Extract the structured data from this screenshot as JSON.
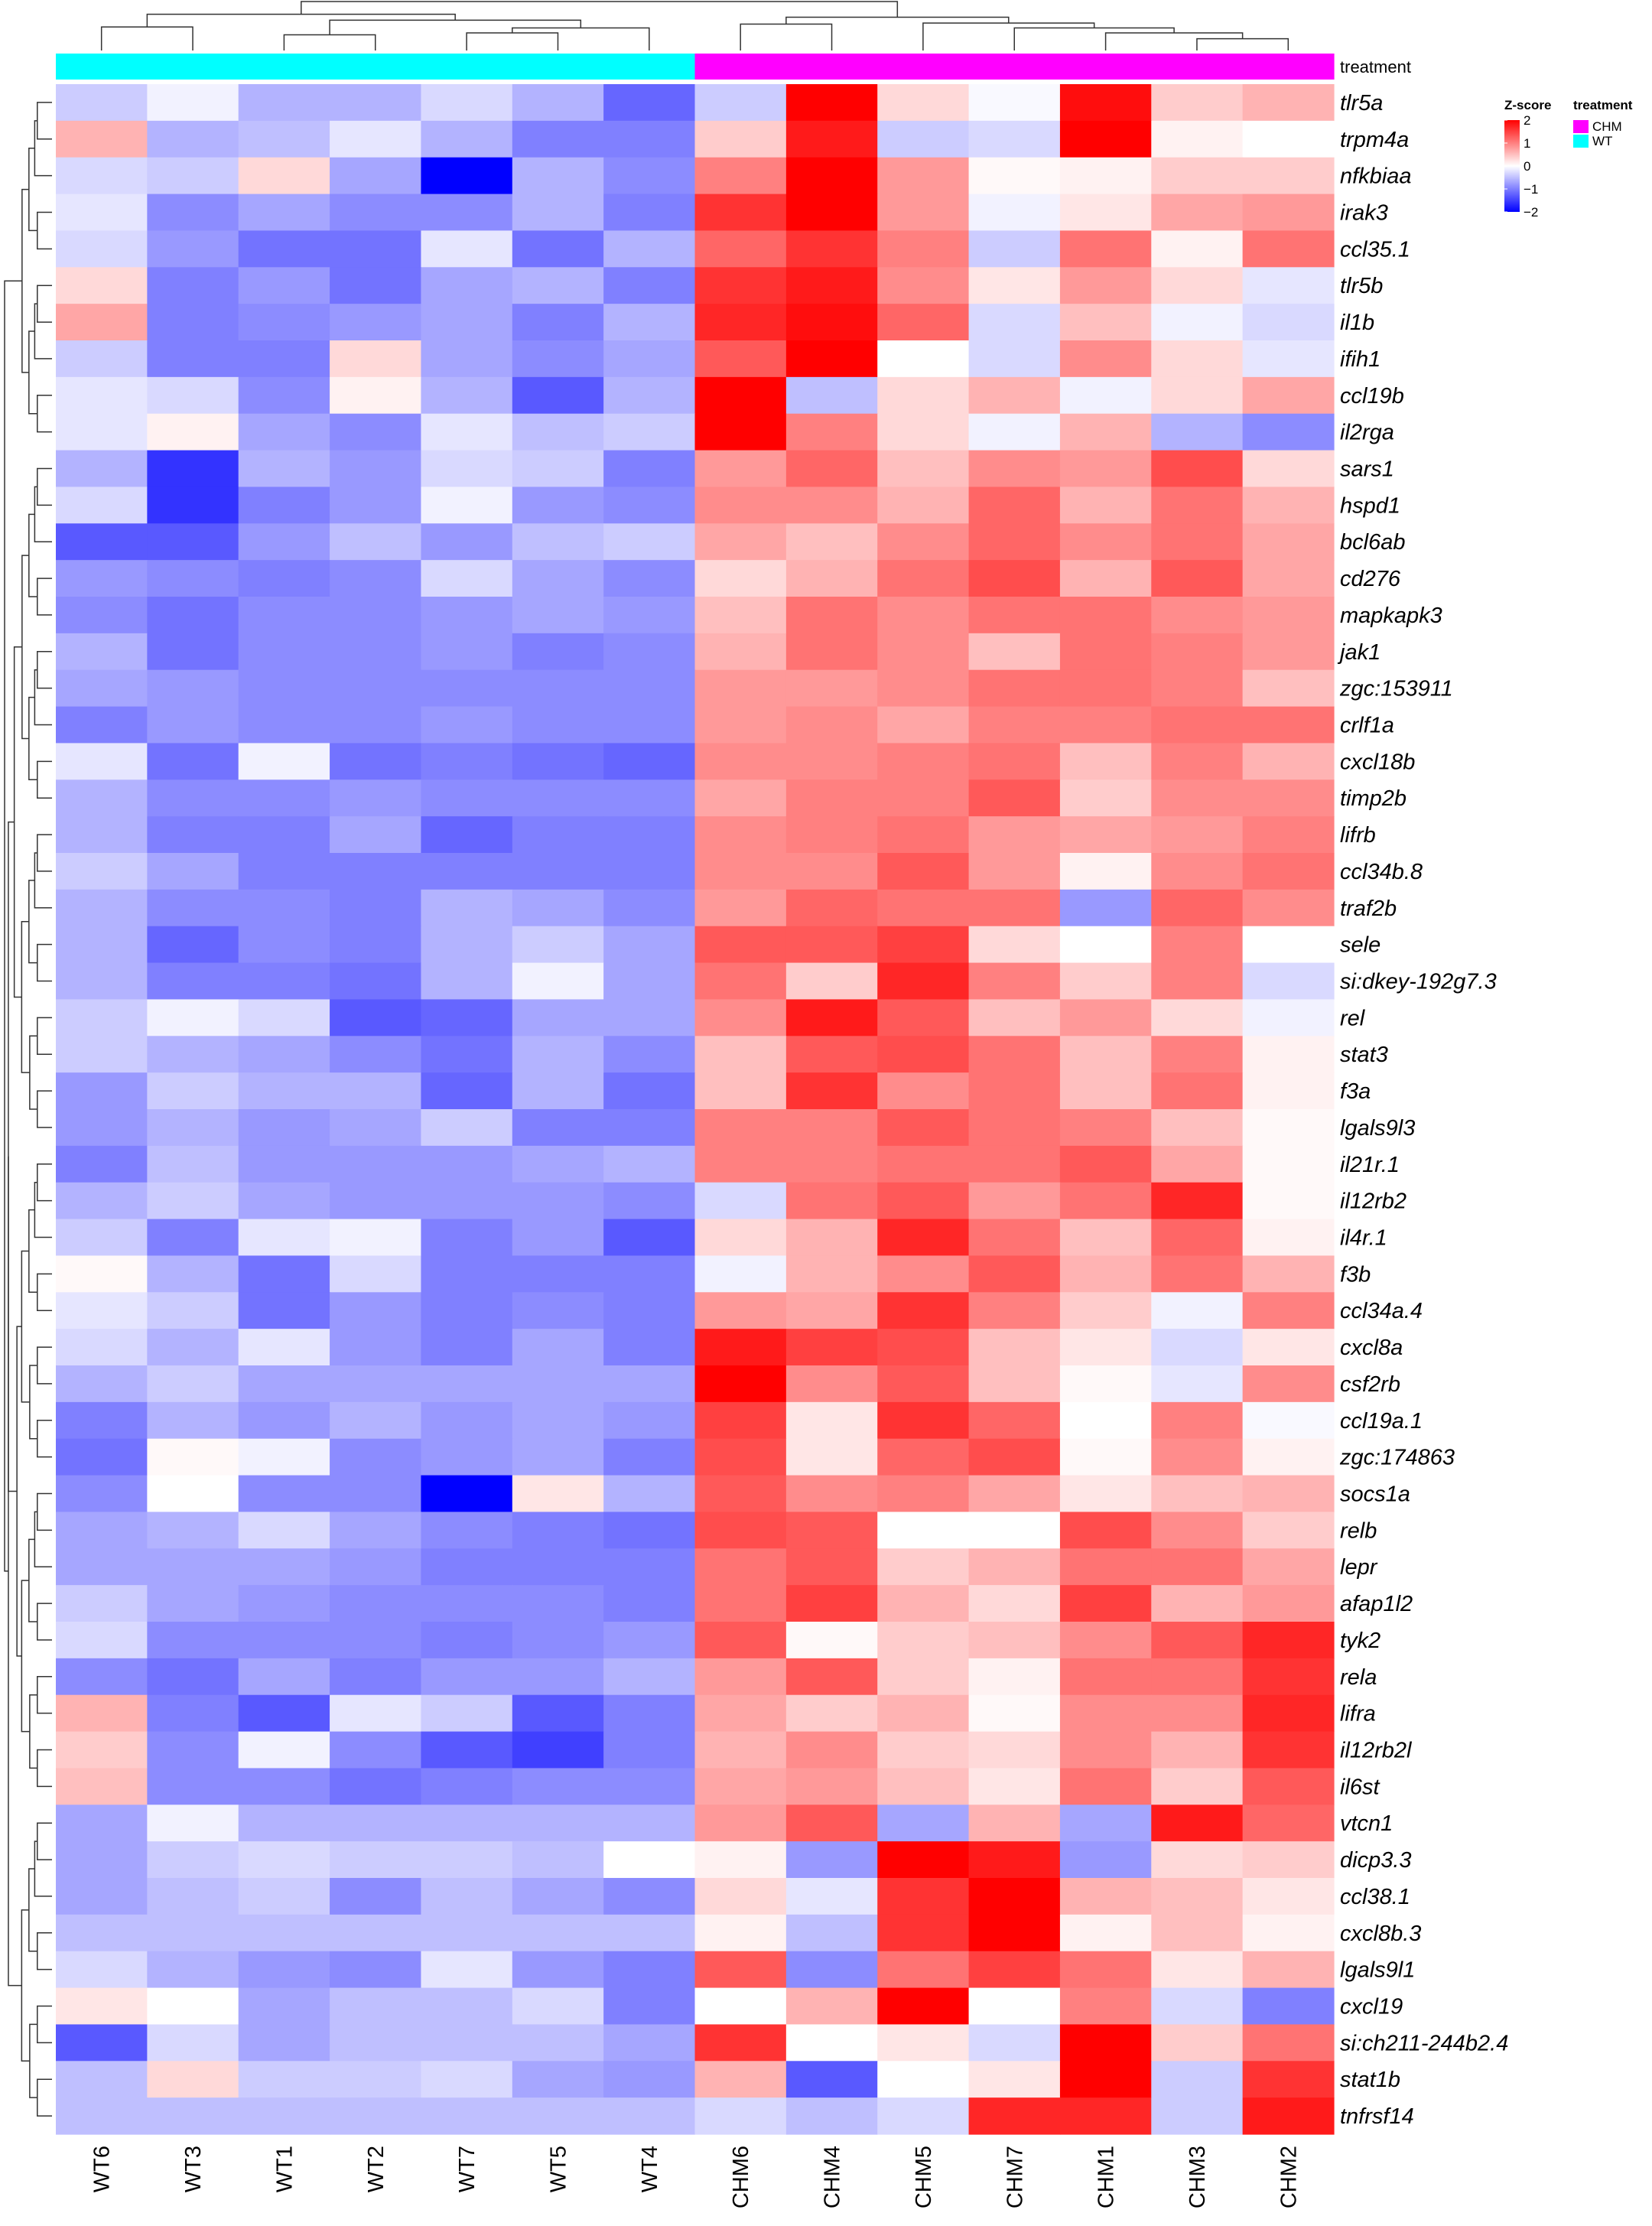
{
  "chart_data": {
    "type": "heatmap",
    "title": "",
    "columns": [
      "WT6",
      "WT3",
      "WT1",
      "WT2",
      "WT7",
      "WT5",
      "WT4",
      "CHM6",
      "CHM4",
      "CHM5",
      "CHM7",
      "CHM1",
      "CHM3",
      "CHM2"
    ],
    "rows": [
      "tlr5a",
      "trpm4a",
      "nfkbiaa",
      "irak3",
      "ccl35.1",
      "tlr5b",
      "il1b",
      "ifih1",
      "ccl19b",
      "il2rga",
      "sars1",
      "hspd1",
      "bcl6ab",
      "cd276",
      "mapkapk3",
      "jak1",
      "zgc:153911",
      "crlf1a",
      "cxcl18b",
      "timp2b",
      "lifrb",
      "ccl34b.8",
      "traf2b",
      "sele",
      "si:dkey-192g7.3",
      "rel",
      "stat3",
      "f3a",
      "lgals9l3",
      "il21r.1",
      "il12rb2",
      "il4r.1",
      "f3b",
      "ccl34a.4",
      "cxcl8a",
      "csf2rb",
      "ccl19a.1",
      "zgc:174863",
      "socs1a",
      "relb",
      "lepr",
      "afap1l2",
      "tyk2",
      "rela",
      "lifra",
      "il12rb2l",
      "il6st",
      "vtcn1",
      "dicp3.3",
      "ccl38.1",
      "cxcl8b.3",
      "lgals9l1",
      "cxcl19",
      "si:ch211-244b2.4",
      "stat1b",
      "tnfrsf14"
    ],
    "values": [
      [
        -0.4,
        -0.1,
        -0.6,
        -0.6,
        -0.3,
        -0.6,
        -1.2,
        -0.4,
        2.0,
        0.3,
        -0.05,
        1.9,
        0.4,
        0.6
      ],
      [
        0.6,
        -0.6,
        -0.5,
        -0.2,
        -0.6,
        -1.0,
        -1.0,
        0.4,
        1.8,
        -0.4,
        -0.3,
        2.0,
        0.1,
        0.0
      ],
      [
        -0.3,
        -0.4,
        0.3,
        -0.7,
        -2.0,
        -0.6,
        -0.9,
        1.0,
        2.0,
        0.8,
        0.05,
        0.1,
        0.4,
        0.4
      ],
      [
        -0.2,
        -0.9,
        -0.7,
        -0.9,
        -0.9,
        -0.6,
        -1.0,
        1.6,
        2.0,
        0.8,
        -0.1,
        0.2,
        0.7,
        0.8
      ],
      [
        -0.3,
        -0.8,
        -1.1,
        -1.1,
        -0.2,
        -1.1,
        -0.6,
        1.2,
        1.6,
        1.0,
        -0.4,
        1.1,
        0.1,
        1.1
      ],
      [
        0.3,
        -1.0,
        -0.8,
        -1.1,
        -0.7,
        -0.6,
        -1.0,
        1.6,
        1.8,
        0.9,
        0.2,
        0.8,
        0.3,
        -0.2
      ],
      [
        0.7,
        -1.0,
        -0.9,
        -0.8,
        -0.7,
        -1.0,
        -0.6,
        1.7,
        1.9,
        1.2,
        -0.3,
        0.5,
        -0.1,
        -0.3
      ],
      [
        -0.4,
        -1.0,
        -1.0,
        0.3,
        -0.7,
        -0.9,
        -0.7,
        1.3,
        2.0,
        0.0,
        -0.3,
        0.9,
        0.3,
        -0.2
      ],
      [
        -0.2,
        -0.3,
        -0.9,
        0.1,
        -0.6,
        -1.3,
        -0.6,
        2.0,
        -0.5,
        0.3,
        0.6,
        -0.1,
        0.3,
        0.7
      ],
      [
        -0.2,
        0.1,
        -0.7,
        -0.9,
        -0.2,
        -0.5,
        -0.4,
        2.0,
        1.0,
        0.3,
        -0.1,
        0.6,
        -0.6,
        -0.9
      ],
      [
        -0.6,
        -1.6,
        -0.6,
        -0.8,
        -0.3,
        -0.4,
        -1.0,
        0.8,
        1.2,
        0.5,
        0.9,
        0.8,
        1.4,
        0.3
      ],
      [
        -0.3,
        -1.6,
        -1.0,
        -0.8,
        -0.1,
        -0.8,
        -0.9,
        0.9,
        0.9,
        0.6,
        1.2,
        0.6,
        1.1,
        0.6
      ],
      [
        -1.3,
        -1.3,
        -0.8,
        -0.5,
        -0.8,
        -0.5,
        -0.4,
        0.7,
        0.5,
        0.9,
        1.2,
        0.9,
        1.1,
        0.7
      ],
      [
        -0.8,
        -0.9,
        -1.0,
        -0.9,
        -0.3,
        -0.7,
        -0.9,
        0.3,
        0.6,
        1.1,
        1.4,
        0.6,
        1.3,
        0.7
      ],
      [
        -0.9,
        -1.1,
        -0.9,
        -0.9,
        -0.8,
        -0.7,
        -0.8,
        0.5,
        1.1,
        0.9,
        1.1,
        1.1,
        0.9,
        0.8
      ],
      [
        -0.6,
        -1.1,
        -0.9,
        -0.9,
        -0.8,
        -1.0,
        -0.9,
        0.6,
        1.1,
        0.9,
        0.5,
        1.1,
        1.0,
        0.8
      ],
      [
        -0.7,
        -0.8,
        -0.9,
        -0.9,
        -0.9,
        -0.9,
        -0.9,
        0.8,
        0.8,
        0.9,
        1.1,
        1.1,
        1.0,
        0.5
      ],
      [
        -1.0,
        -0.8,
        -0.9,
        -0.9,
        -0.8,
        -0.9,
        -0.9,
        0.8,
        0.9,
        0.7,
        1.0,
        1.0,
        1.1,
        1.1
      ],
      [
        -0.2,
        -1.1,
        -0.1,
        -1.1,
        -1.0,
        -1.1,
        -1.2,
        0.9,
        0.9,
        1.0,
        1.1,
        0.5,
        1.0,
        0.6
      ],
      [
        -0.6,
        -0.9,
        -0.9,
        -0.8,
        -0.9,
        -0.9,
        -0.9,
        0.7,
        1.0,
        1.0,
        1.3,
        0.4,
        0.9,
        0.9
      ],
      [
        -0.6,
        -1.0,
        -1.0,
        -0.7,
        -1.2,
        -1.0,
        -1.0,
        0.9,
        1.0,
        1.1,
        0.8,
        0.7,
        0.8,
        1.0
      ],
      [
        -0.4,
        -0.7,
        -1.0,
        -1.0,
        -1.0,
        -1.0,
        -1.0,
        0.9,
        0.9,
        1.3,
        0.8,
        0.1,
        0.9,
        1.1
      ],
      [
        -0.6,
        -0.9,
        -0.9,
        -1.0,
        -0.6,
        -0.7,
        -0.9,
        0.8,
        1.2,
        1.1,
        1.1,
        -0.8,
        1.2,
        0.9
      ],
      [
        -0.6,
        -1.2,
        -0.9,
        -1.0,
        -0.6,
        -0.4,
        -0.7,
        1.3,
        1.3,
        1.5,
        0.3,
        0.0,
        1.0,
        0.0
      ],
      [
        -0.6,
        -1.0,
        -1.0,
        -1.1,
        -0.6,
        -0.1,
        -0.7,
        1.1,
        0.4,
        1.7,
        1.0,
        0.4,
        1.0,
        -0.3
      ],
      [
        -0.4,
        -0.1,
        -0.3,
        -1.3,
        -1.2,
        -0.7,
        -0.7,
        0.9,
        1.8,
        1.3,
        0.5,
        0.8,
        0.3,
        -0.1
      ],
      [
        -0.4,
        -0.6,
        -0.7,
        -0.9,
        -1.1,
        -0.6,
        -0.9,
        0.5,
        1.3,
        1.4,
        1.1,
        0.5,
        1.0,
        0.1
      ],
      [
        -0.8,
        -0.4,
        -0.6,
        -0.6,
        -1.2,
        -0.6,
        -1.1,
        0.5,
        1.6,
        0.9,
        1.1,
        0.5,
        1.1,
        0.1
      ],
      [
        -0.8,
        -0.6,
        -0.8,
        -0.7,
        -0.4,
        -1.0,
        -1.0,
        1.0,
        1.0,
        1.3,
        1.1,
        1.0,
        0.5,
        0.05
      ],
      [
        -1.0,
        -0.5,
        -0.8,
        -0.8,
        -0.8,
        -0.7,
        -0.6,
        1.0,
        1.0,
        1.1,
        1.1,
        1.3,
        0.7,
        0.05
      ],
      [
        -0.6,
        -0.4,
        -0.7,
        -0.8,
        -0.8,
        -0.8,
        -0.9,
        -0.3,
        1.1,
        1.3,
        0.8,
        1.1,
        1.7,
        0.05
      ],
      [
        -0.4,
        -1.0,
        -0.2,
        -0.1,
        -1.0,
        -0.8,
        -1.3,
        0.3,
        0.6,
        1.7,
        1.1,
        0.5,
        1.2,
        0.1
      ],
      [
        0.05,
        -0.6,
        -1.1,
        -0.3,
        -1.0,
        -1.0,
        -1.0,
        -0.1,
        0.6,
        0.9,
        1.3,
        0.6,
        1.1,
        0.6
      ],
      [
        -0.2,
        -0.4,
        -1.1,
        -0.8,
        -1.0,
        -0.9,
        -1.0,
        0.8,
        0.7,
        1.6,
        1.0,
        0.4,
        -0.1,
        1.0
      ],
      [
        -0.3,
        -0.6,
        -0.2,
        -0.8,
        -1.0,
        -0.7,
        -1.0,
        1.8,
        1.5,
        1.4,
        0.5,
        0.2,
        -0.3,
        0.2
      ],
      [
        -0.6,
        -0.4,
        -0.7,
        -0.7,
        -0.7,
        -0.7,
        -0.7,
        2.0,
        0.9,
        1.3,
        0.5,
        0.05,
        -0.2,
        0.9
      ],
      [
        -1.0,
        -0.6,
        -0.8,
        -0.6,
        -0.8,
        -0.7,
        -0.8,
        1.5,
        0.2,
        1.6,
        1.2,
        0.0,
        1.0,
        -0.05
      ],
      [
        -1.1,
        0.05,
        -0.1,
        -0.9,
        -0.8,
        -0.7,
        -1.0,
        1.4,
        0.2,
        1.2,
        1.4,
        0.05,
        0.9,
        0.1
      ],
      [
        -0.9,
        0.0,
        -0.9,
        -0.9,
        -2.2,
        0.2,
        -0.6,
        1.3,
        0.9,
        1.0,
        0.7,
        0.2,
        0.5,
        0.6
      ],
      [
        -0.7,
        -0.6,
        -0.3,
        -0.7,
        -0.9,
        -1.0,
        -1.1,
        1.4,
        1.3,
        0.0,
        0.0,
        1.4,
        0.9,
        0.4
      ],
      [
        -0.7,
        -0.7,
        -0.7,
        -0.8,
        -1.0,
        -1.0,
        -1.0,
        1.1,
        1.3,
        0.4,
        0.6,
        1.1,
        1.1,
        0.7
      ],
      [
        -0.4,
        -0.7,
        -0.8,
        -0.9,
        -0.9,
        -0.9,
        -1.0,
        1.1,
        1.5,
        0.6,
        0.3,
        1.5,
        0.6,
        0.8
      ],
      [
        -0.3,
        -0.9,
        -0.9,
        -0.9,
        -1.0,
        -0.9,
        -0.8,
        1.3,
        0.05,
        0.4,
        0.5,
        0.9,
        1.3,
        1.7
      ],
      [
        -0.9,
        -1.1,
        -0.7,
        -1.0,
        -0.8,
        -0.8,
        -0.6,
        0.8,
        1.3,
        0.4,
        0.1,
        1.1,
        1.1,
        1.6
      ],
      [
        0.6,
        -1.0,
        -1.3,
        -0.2,
        -0.4,
        -1.3,
        -1.0,
        0.7,
        0.4,
        0.6,
        0.05,
        0.9,
        0.9,
        1.7
      ],
      [
        0.4,
        -0.9,
        -0.1,
        -0.9,
        -1.3,
        -1.5,
        -1.0,
        0.6,
        0.9,
        0.4,
        0.3,
        0.9,
        0.6,
        1.6
      ],
      [
        0.5,
        -0.9,
        -0.9,
        -1.1,
        -1.0,
        -0.9,
        -0.9,
        0.7,
        0.8,
        0.5,
        0.2,
        1.1,
        0.4,
        1.3
      ],
      [
        -0.7,
        -0.1,
        -0.6,
        -0.6,
        -0.6,
        -0.6,
        -0.6,
        0.8,
        1.3,
        -0.7,
        0.6,
        -0.7,
        1.8,
        1.2
      ],
      [
        -0.7,
        -0.4,
        -0.3,
        -0.4,
        -0.4,
        -0.5,
        0.0,
        0.1,
        -0.8,
        2.0,
        1.8,
        -0.8,
        0.3,
        0.4
      ],
      [
        -0.7,
        -0.5,
        -0.4,
        -0.9,
        -0.5,
        -0.7,
        -0.9,
        0.3,
        -0.2,
        1.6,
        2.0,
        0.6,
        0.5,
        0.2
      ],
      [
        -0.5,
        -0.5,
        -0.5,
        -0.5,
        -0.5,
        -0.5,
        -0.5,
        0.1,
        -0.5,
        1.6,
        2.0,
        0.1,
        0.5,
        0.1
      ],
      [
        -0.3,
        -0.6,
        -0.8,
        -0.9,
        -0.2,
        -0.8,
        -1.0,
        1.3,
        -0.9,
        1.1,
        1.5,
        1.1,
        0.2,
        0.6
      ],
      [
        0.2,
        0.0,
        -0.7,
        -0.5,
        -0.5,
        -0.3,
        -1.0,
        0.0,
        0.6,
        2.0,
        0.0,
        1.0,
        -0.3,
        -1.0
      ],
      [
        -1.3,
        -0.3,
        -0.7,
        -0.5,
        -0.5,
        -0.5,
        -0.7,
        1.6,
        0.0,
        0.2,
        -0.3,
        2.0,
        0.4,
        1.1
      ],
      [
        -0.5,
        0.3,
        -0.4,
        -0.4,
        -0.3,
        -0.7,
        -0.8,
        0.6,
        -1.3,
        0.0,
        0.2,
        2.0,
        -0.4,
        1.6
      ],
      [
        -0.5,
        -0.5,
        -0.5,
        -0.5,
        -0.5,
        -0.5,
        -0.5,
        -0.3,
        -0.5,
        -0.3,
        1.7,
        1.7,
        -0.4,
        1.8
      ]
    ],
    "treatment_annotation": {
      "label": "treatment",
      "groups": [
        "WT",
        "WT",
        "WT",
        "WT",
        "WT",
        "WT",
        "WT",
        "CHM",
        "CHM",
        "CHM",
        "CHM",
        "CHM",
        "CHM",
        "CHM"
      ]
    },
    "legend": {
      "zscore_title": "Z-score",
      "zscore_ticks": [
        2,
        1,
        0,
        -1,
        -2
      ],
      "zscore_tick_labels": [
        "2",
        "1",
        "0",
        "−1",
        "−2"
      ],
      "color_low": "#0000ff",
      "color_mid": "#ffffff",
      "color_high": "#ff0000",
      "treatment_title": "treatment",
      "treatment_entries": [
        {
          "label": "CHM",
          "color": "#ff00ff"
        },
        {
          "label": "WT",
          "color": "#00ffff"
        }
      ]
    }
  }
}
